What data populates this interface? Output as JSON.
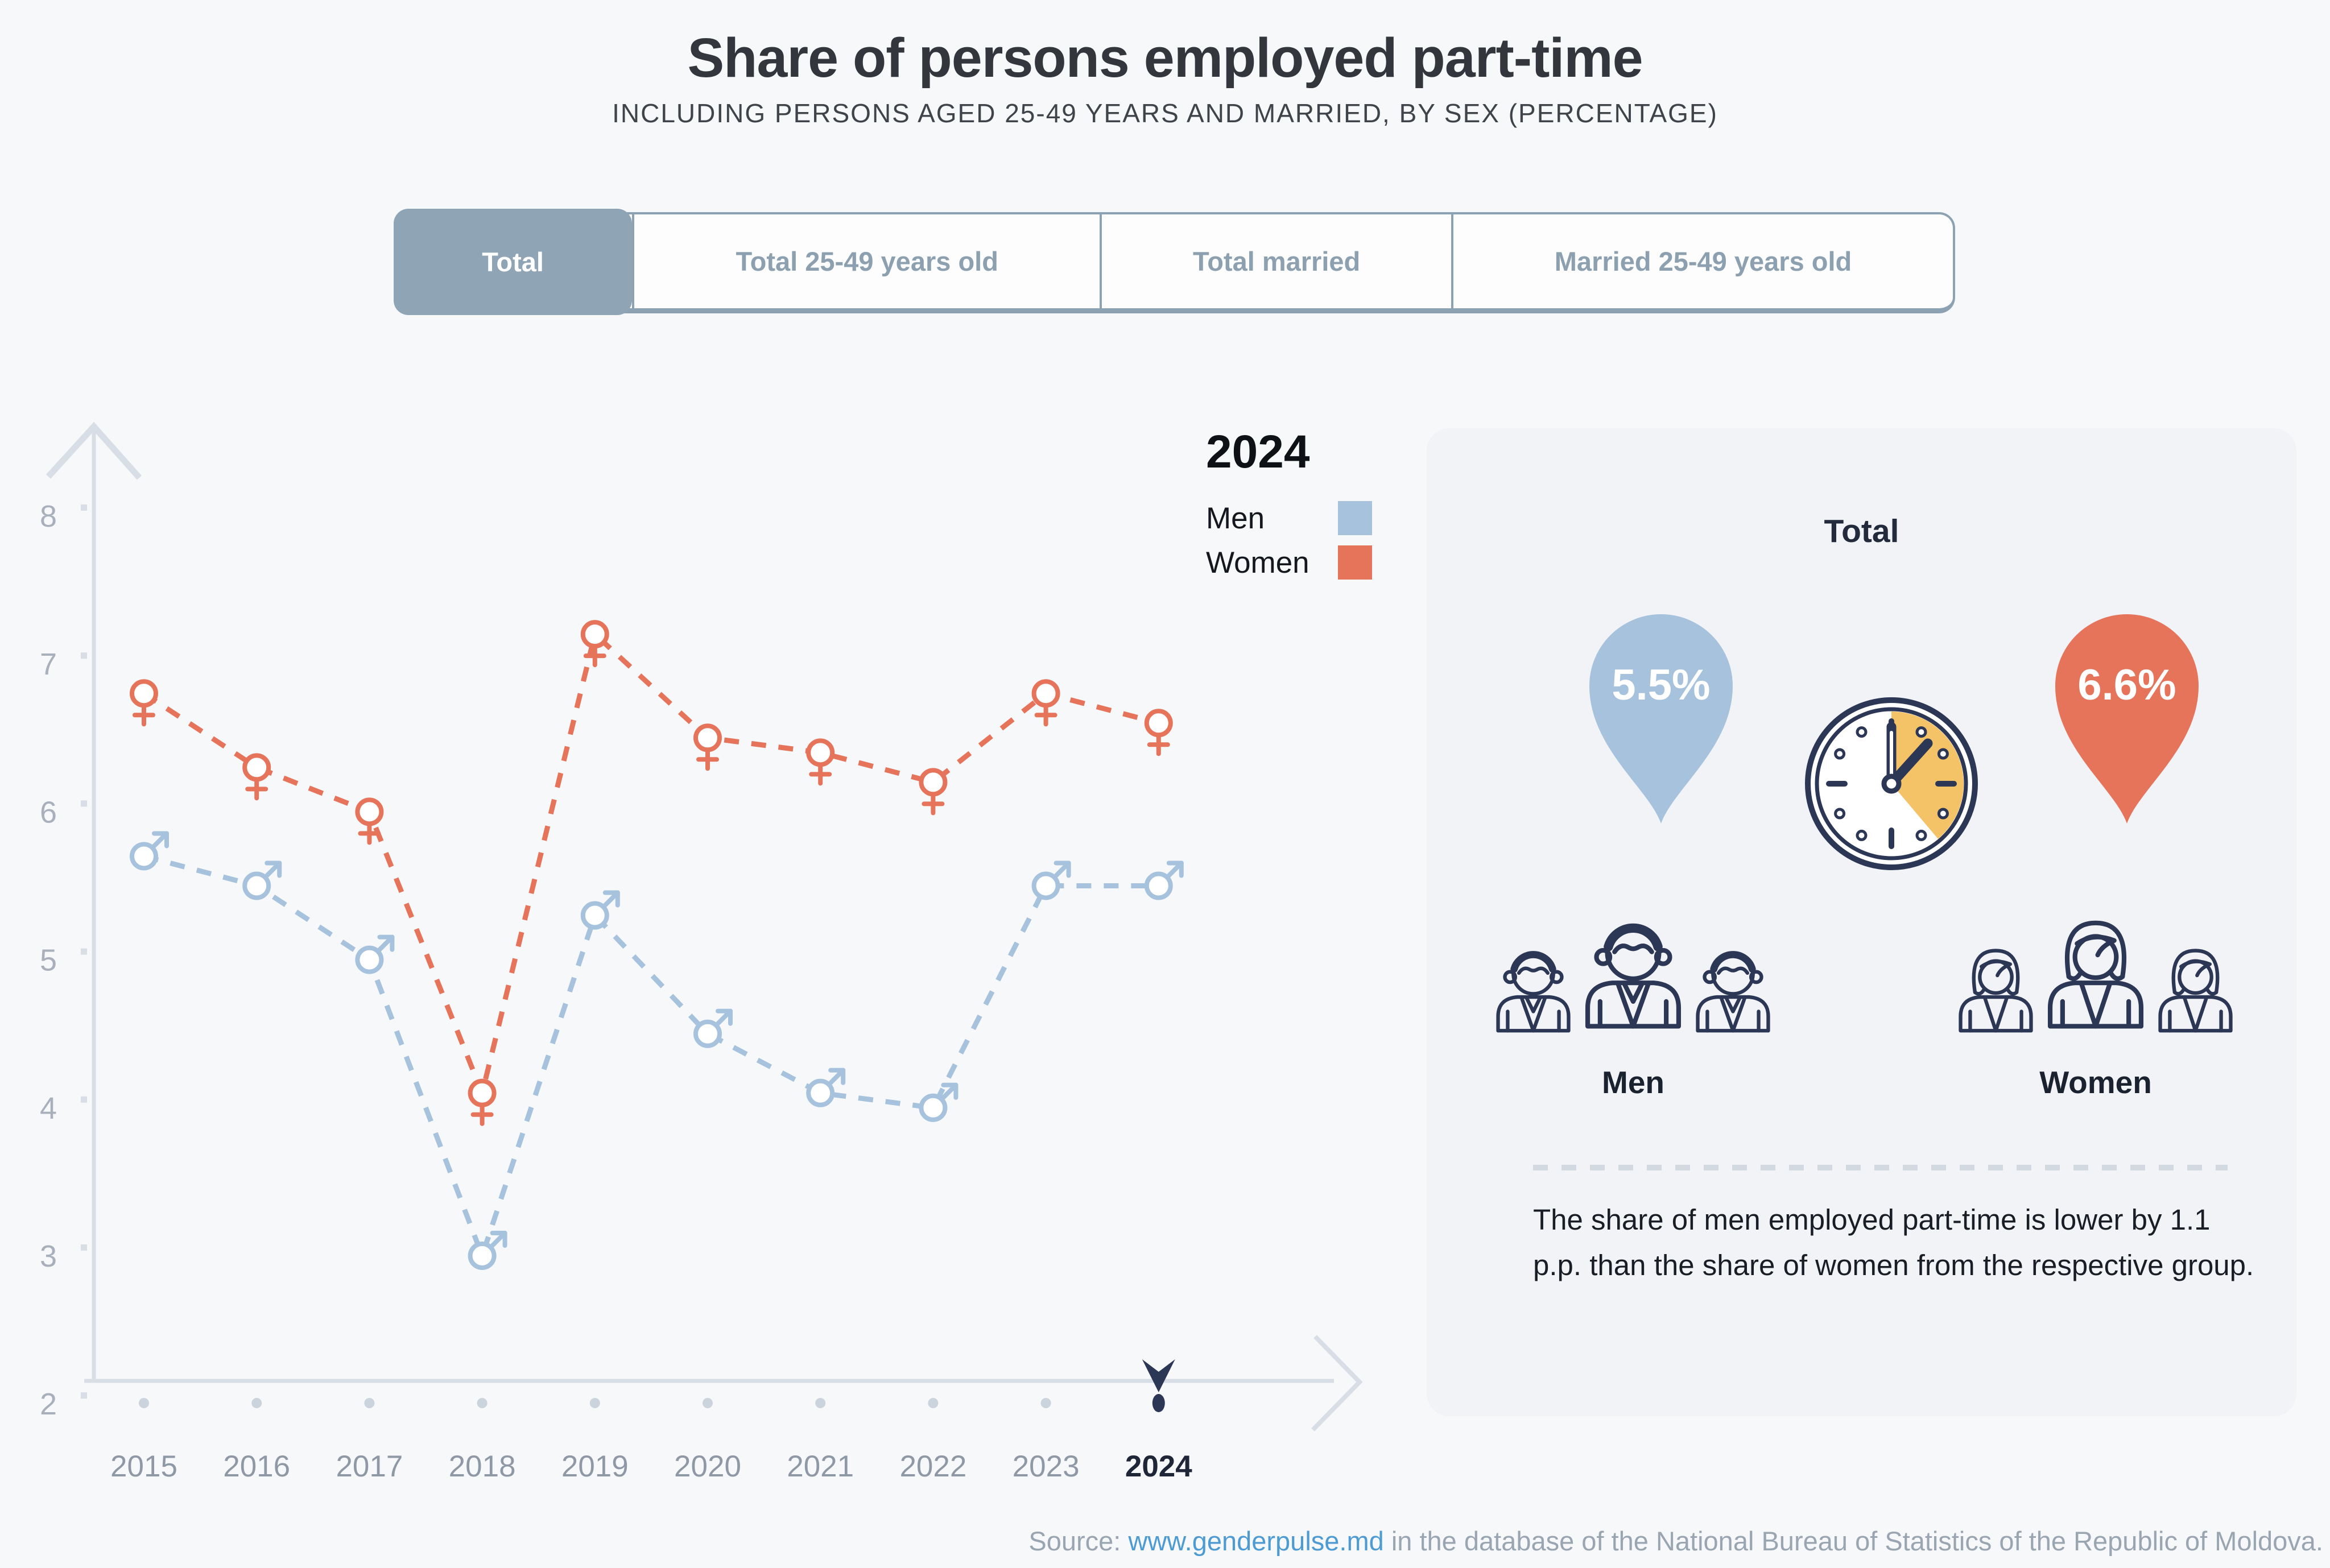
{
  "title": "Share of persons employed part-time",
  "subtitle": "INCLUDING PERSONS AGED 25-49 YEARS AND MARRIED, BY SEX (PERCENTAGE)",
  "tabs": [
    {
      "label": "Total",
      "active": true
    },
    {
      "label": "Total 25-49 years old",
      "active": false
    },
    {
      "label": "Total married",
      "active": false
    },
    {
      "label": "Married 25-49 years old",
      "active": false
    }
  ],
  "legend": {
    "year": "2024",
    "men_label": "Men",
    "women_label": "Women"
  },
  "chart_data": {
    "type": "line",
    "x": [
      2015,
      2016,
      2017,
      2018,
      2019,
      2020,
      2021,
      2022,
      2023,
      2024
    ],
    "series": [
      {
        "name": "Men",
        "values": [
          5.7,
          5.5,
          5.0,
          3.0,
          5.3,
          4.5,
          4.1,
          4.0,
          5.5,
          5.5
        ],
        "color": "#A6C2DC",
        "marker": "male",
        "line_style": "dashed"
      },
      {
        "name": "Women",
        "values": [
          6.8,
          6.3,
          6.0,
          4.1,
          7.2,
          6.5,
          6.4,
          6.2,
          6.8,
          6.6
        ],
        "color": "#E6745B",
        "marker": "female",
        "line_style": "dashed"
      }
    ],
    "ylim": [
      2,
      8
    ],
    "yticks": [
      2,
      3,
      4,
      5,
      6,
      7,
      8
    ],
    "highlight_year": "2024",
    "grid": false,
    "legend_position": "top-right",
    "xlabel": "",
    "ylabel": ""
  },
  "panel": {
    "heading": "Total",
    "men_value": "5.5%",
    "women_value": "6.6%",
    "men_label": "Men",
    "women_label": "Women",
    "note": "The share of men employed part-time is lower by 1.1 p.p. than the share of women from the respective group."
  },
  "source": {
    "prefix": "Source: ",
    "link": "www.genderpulse.md",
    "suffix": " in the database of the National Bureau of Statistics of the Republic of Moldova."
  },
  "colors": {
    "men": "#A6C2DC",
    "women": "#E6745B",
    "axis": "#D8DEE5",
    "tick_label": "#A8B0BB",
    "year_label": "#8F99A6",
    "year_label_active": "#1E2638",
    "year_dot": "#CBD3DC",
    "dark": "#2C3655",
    "tab_active_bg": "#8FA4B4",
    "panel_bg": "#F1F3F6",
    "page_bg": "#F7F8FA",
    "clock_wedge": "#F4C267",
    "link": "#4E9BD4",
    "source_text": "#9AA5B2"
  },
  "icons": {
    "clock": "clock-icon",
    "men_group": "men-group-icon",
    "women_group": "women-group-icon",
    "men_pin": "men-value-pin",
    "women_pin": "women-value-pin",
    "male_marker": "male-symbol-icon",
    "female_marker": "female-symbol-icon",
    "y_axis_arrow": "up-arrow-icon",
    "x_axis_arrow": "right-arrow-icon",
    "year_cursor": "down-cursor-icon"
  }
}
